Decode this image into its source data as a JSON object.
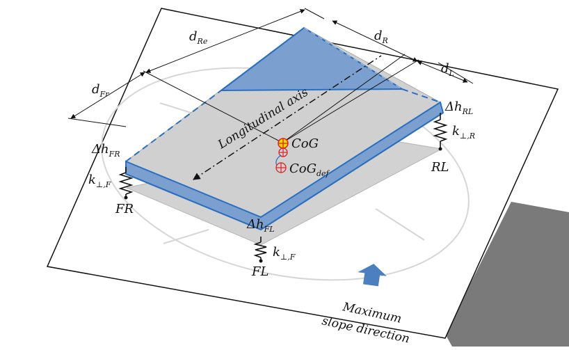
{
  "labels": {
    "d_re": {
      "main": "d",
      "sub": "Re"
    },
    "d_r": {
      "main": "d",
      "sub": "R"
    },
    "d_l": {
      "main": "d",
      "sub": "L"
    },
    "d_fr": {
      "main": "d",
      "sub": "Fr"
    },
    "dh_rl": {
      "main": "Δh",
      "sub": "RL"
    },
    "dh_fr": {
      "main": "Δh",
      "sub": "FR"
    },
    "dh_fl": {
      "main": "Δh",
      "sub": "FL"
    },
    "k_r": {
      "main": "k",
      "sub": "⊥,R"
    },
    "k_f_left": {
      "main": "k",
      "sub": "⊥,F"
    },
    "k_f_bottom": {
      "main": "k",
      "sub": "⊥,F"
    },
    "cog": "CoG",
    "cog_def": {
      "main": "CoG",
      "sub": "def"
    },
    "longitudinal_axis": "Longitudinal axis",
    "corner_rl": "RL",
    "corner_fr": "FR",
    "corner_fl": "FL",
    "slope_line1": "Maximum",
    "slope_line2": "slope direction"
  },
  "colors": {
    "blue_stroke": "#2a6fc0",
    "blue_fill": "#7b9fcf",
    "grey_fill": "#d2d2d2",
    "shadow": "#7a7a7a",
    "arrow_fill": "#4a7fc0",
    "cog_yellow": "#f5d800",
    "cog_red": "#e02020"
  }
}
